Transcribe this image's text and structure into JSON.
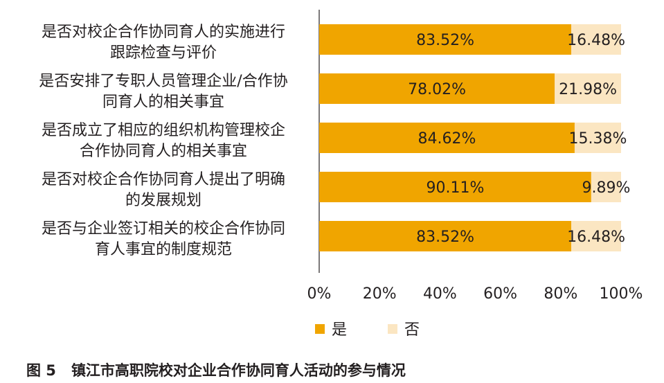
{
  "chart_data": {
    "type": "bar",
    "orientation": "horizontal",
    "stacked": true,
    "categories": [
      [
        "是否对校企合作协同育人的实施进行",
        "跟踪检查与评价"
      ],
      [
        "是否安排了专职人员管理企业/合作协",
        "同育人的相关事宜"
      ],
      [
        "是否成立了相应的组织机构管理校企",
        "合作协同育人的相关事宜"
      ],
      [
        "是否对校企合作协同育人提出了明确",
        "的发展规划"
      ],
      [
        "是否与企业签订相关的校企合作协同",
        "育人事宜的制度规范"
      ]
    ],
    "series": [
      {
        "name": "是",
        "color": "#f0a500",
        "values": [
          83.52,
          78.02,
          84.62,
          90.11,
          83.52
        ],
        "labels": [
          "83.52%",
          "78.02%",
          "84.62%",
          "90.11%",
          "83.52%"
        ]
      },
      {
        "name": "否",
        "color": "#fbe6c2",
        "values": [
          16.48,
          21.98,
          15.38,
          9.89,
          16.48
        ],
        "labels": [
          "16.48%",
          "21.98%",
          "15.38%",
          "9.89%",
          "16.48%"
        ]
      }
    ],
    "xlim": [
      0,
      100
    ],
    "xticks": [
      "0%",
      "20%",
      "40%",
      "60%",
      "80%",
      "100%"
    ],
    "grid": false,
    "legend_position": "bottom"
  },
  "caption": {
    "number": "图 5",
    "text": "镇江市高职院校对企业合作协同育人活动的参与情况"
  }
}
